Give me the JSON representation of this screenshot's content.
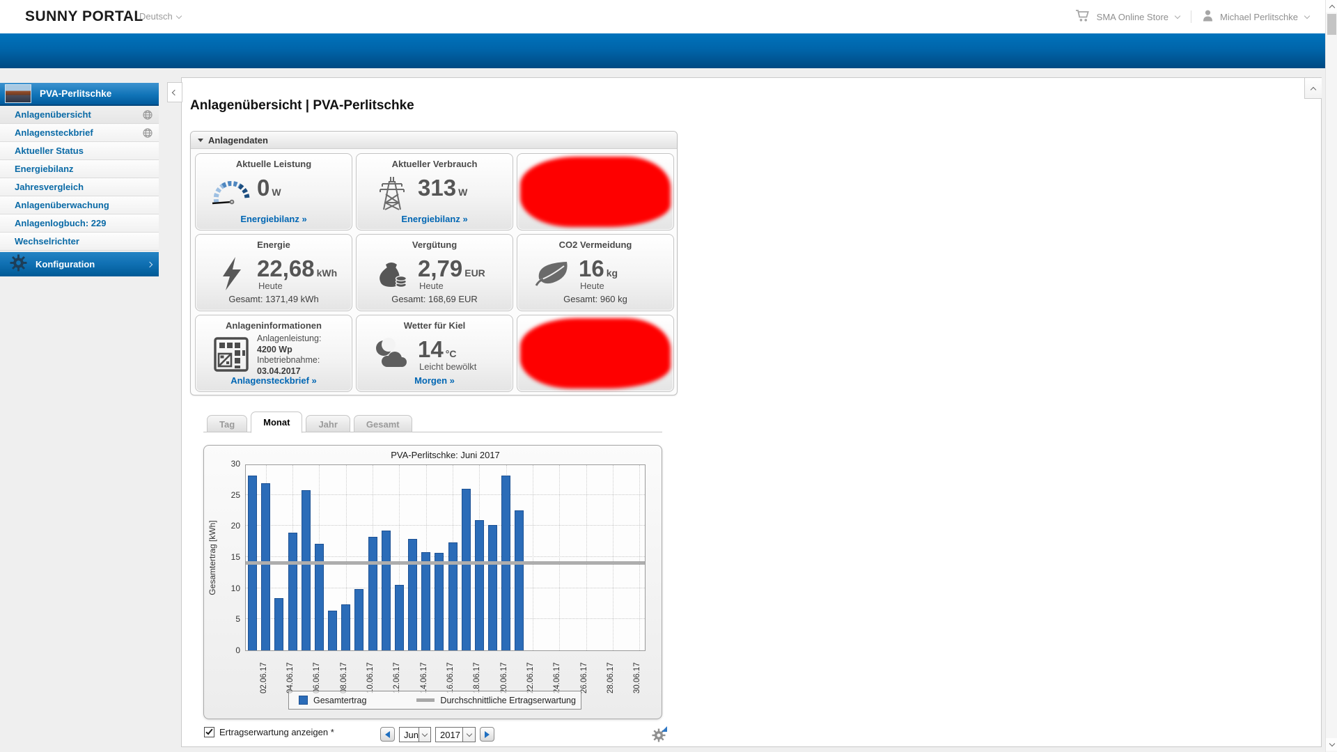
{
  "topbar": {
    "logo": "SUNNY PORTAL",
    "language_label": "Deutsch",
    "store_label": "SMA Online Store",
    "user_name": "Michael Perlitschke"
  },
  "sidebar": {
    "plant_name": "PVA-Perlitschke",
    "items": [
      {
        "label": "Anlagenübersicht",
        "globe": true,
        "selected": true
      },
      {
        "label": "Anlagensteckbrief",
        "globe": true,
        "selected": false
      },
      {
        "label": "Aktueller Status",
        "globe": false,
        "selected": false
      },
      {
        "label": "Energiebilanz",
        "globe": false,
        "selected": false
      },
      {
        "label": "Jahresvergleich",
        "globe": false,
        "selected": false
      },
      {
        "label": "Anlagenüberwachung",
        "globe": false,
        "selected": false
      },
      {
        "label": "Anlagenlogbuch: 229",
        "globe": false,
        "selected": false
      },
      {
        "label": "Wechselrichter",
        "globe": false,
        "selected": false
      }
    ],
    "config_label": "Konfiguration"
  },
  "page": {
    "title": "Anlagenübersicht | PVA-Perlitschke",
    "panel_title": "Anlagendaten"
  },
  "tiles": {
    "power": {
      "title": "Aktuelle Leistung",
      "value": "0",
      "unit": "W",
      "link": "Energiebilanz »"
    },
    "consumption": {
      "title": "Aktueller Verbrauch",
      "value": "313",
      "unit": "W",
      "link": "Energiebilanz »"
    },
    "energy": {
      "title": "Energie",
      "value": "22,68",
      "unit": "kWh",
      "period": "Heute",
      "total": "Gesamt: 1371,49 kWh"
    },
    "revenue": {
      "title": "Vergütung",
      "value": "2,79",
      "unit": "EUR",
      "period": "Heute",
      "total": "Gesamt: 168,69 EUR"
    },
    "co2": {
      "title": "CO2 Vermeidung",
      "value": "16",
      "unit": "kg",
      "period": "Heute",
      "total": "Gesamt: 960 kg"
    },
    "plant_info": {
      "title": "Anlageninformationen",
      "power_label": "Anlagenleistung:",
      "power_value": "4200 Wp",
      "commissioning_label": "Inbetriebnahme:",
      "commissioning_value": "03.04.2017",
      "link": "Anlagensteckbrief »"
    },
    "weather": {
      "title": "Wetter für Kiel",
      "value": "14",
      "unit": "°C",
      "condition": "Leicht bewölkt",
      "link": "Morgen »"
    }
  },
  "tabs": {
    "items": [
      "Tag",
      "Monat",
      "Jahr",
      "Gesamt"
    ],
    "active": "Monat"
  },
  "chart_data": {
    "type": "bar",
    "title": "PVA-Perlitschke: Juni 2017",
    "ylabel": "Gesamtertrag [kWh]",
    "ylim": [
      0,
      30
    ],
    "yticks": [
      0,
      5,
      10,
      15,
      20,
      25,
      30
    ],
    "x_tick_labels": [
      "02.06.17",
      "04.06.17",
      "06.06.17",
      "08.06.17",
      "10.06.17",
      "12.06.17",
      "14.06.17",
      "16.06.17",
      "18.06.17",
      "20.06.17",
      "22.06.17",
      "24.06.17",
      "26.06.17",
      "28.06.17",
      "30.06.17"
    ],
    "days_in_month": 30,
    "grid": true,
    "legend_position": "bottom",
    "series": [
      {
        "name": "Gesamtertrag",
        "type": "bar",
        "color": "#2B6CB8",
        "values_by_day": [
          28.1,
          26.9,
          8.4,
          18.9,
          25.7,
          17.1,
          6.4,
          7.4,
          9.9,
          18.2,
          19.2,
          10.5,
          17.9,
          15.8,
          15.7,
          17.3,
          26.0,
          20.9,
          20.1,
          28.1,
          22.5
        ]
      },
      {
        "name": "Durchschnittliche Ertragserwartung",
        "type": "hline",
        "color": "#ADADAD",
        "value": 14
      }
    ]
  },
  "controls": {
    "checkbox_label": "Ertragserwartung anzeigen *",
    "checkbox_checked": true,
    "month": "Jun",
    "year": "2017"
  },
  "colors": {
    "accent_blue": "#0066B3",
    "bar_blue": "#2B6CB8",
    "avg_gray": "#ADADAD",
    "redaction": "#FF0000"
  }
}
